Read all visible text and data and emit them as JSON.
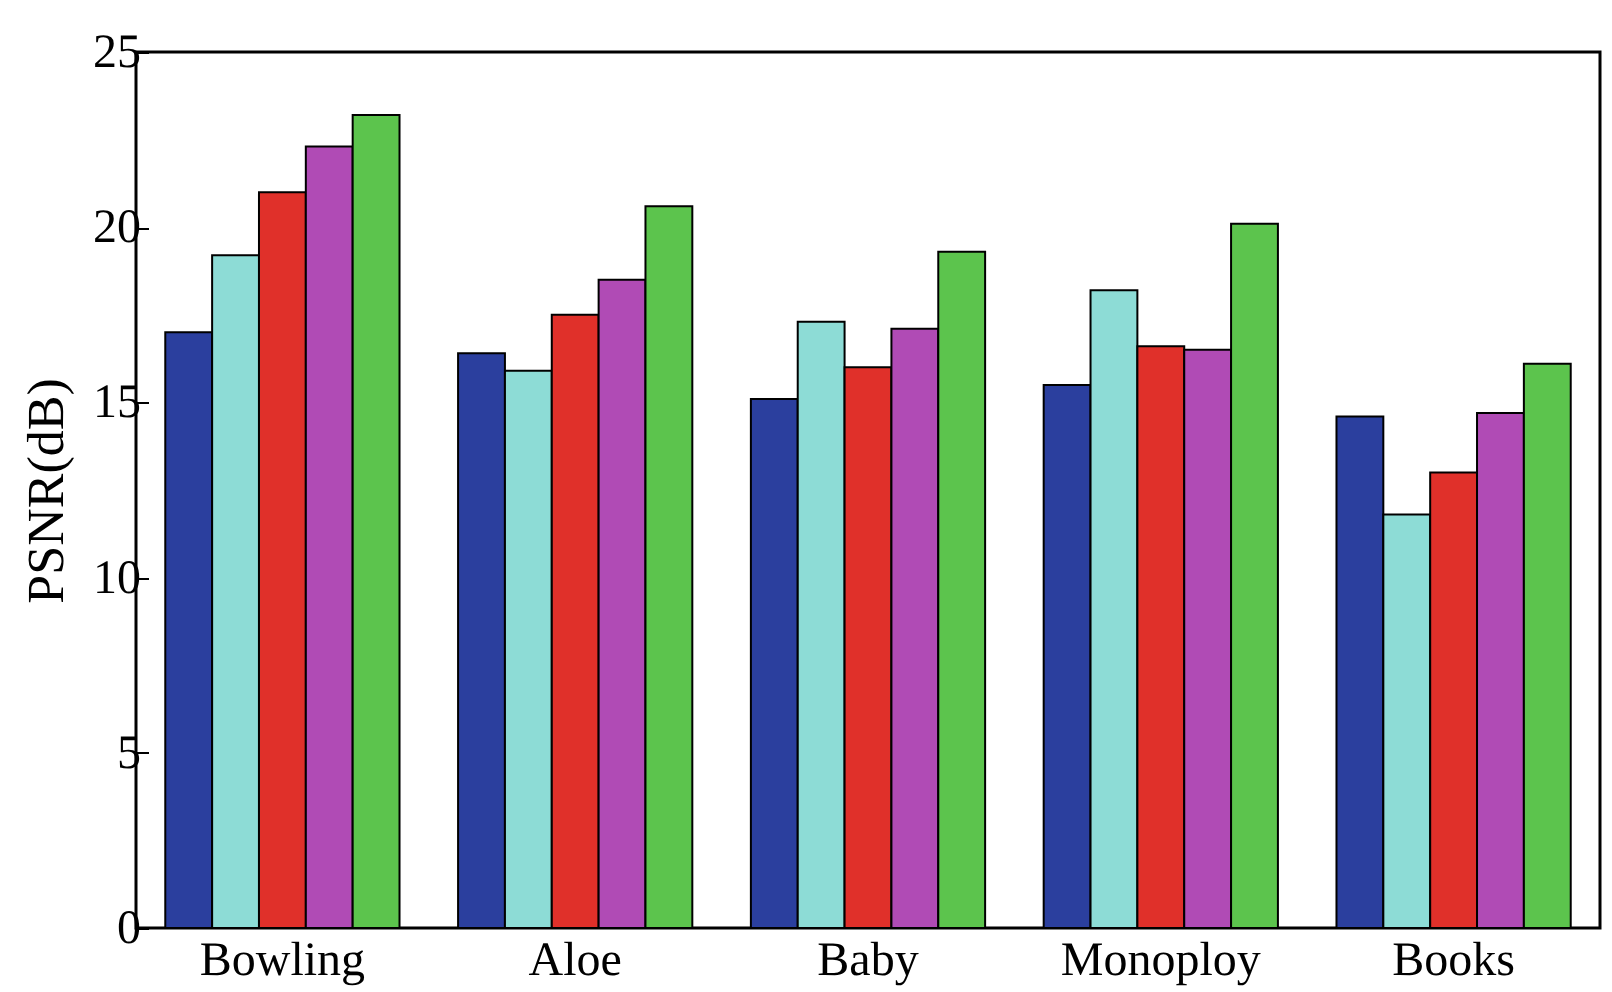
{
  "chart_data": {
    "type": "bar",
    "ylabel": "PSNR(dB)",
    "categories": [
      "Bowling",
      "Aloe",
      "Baby",
      "Monoploy",
      "Books"
    ],
    "series": [
      {
        "color": "#2b3f9e",
        "values": [
          17.0,
          16.4,
          15.1,
          15.5,
          14.6
        ]
      },
      {
        "color": "#8ddcd6",
        "values": [
          19.2,
          15.9,
          17.3,
          18.2,
          11.8
        ]
      },
      {
        "color": "#e0302a",
        "values": [
          21.0,
          17.5,
          16.0,
          16.6,
          13.0
        ]
      },
      {
        "color": "#b04bb5",
        "values": [
          22.3,
          18.5,
          17.1,
          16.5,
          14.7
        ]
      },
      {
        "color": "#5cc44d",
        "values": [
          23.2,
          20.6,
          19.3,
          20.1,
          16.1
        ]
      }
    ],
    "ylim": [
      0,
      25
    ],
    "yticks": [
      0,
      5,
      10,
      15,
      20,
      25
    ],
    "grid": false,
    "legend": false
  }
}
